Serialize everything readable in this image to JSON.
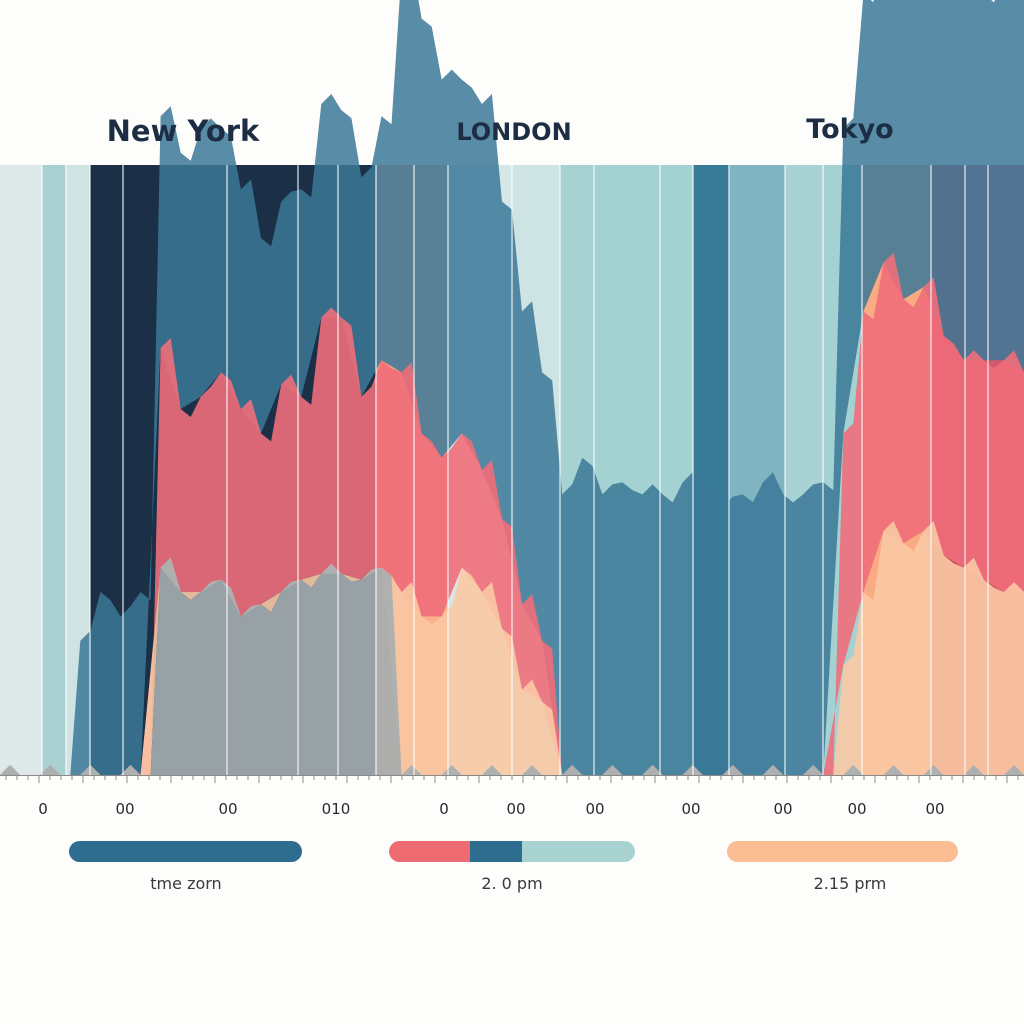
{
  "chart_data": {
    "type": "area",
    "title": "",
    "xlabel": "",
    "ylabel": "",
    "groups": [
      {
        "name": "New York",
        "x_start": 0,
        "x_end": 338
      },
      {
        "name": "LONDON",
        "x_start": 338,
        "x_end": 693
      },
      {
        "name": "Tokyo",
        "x_start": 693,
        "x_end": 1024
      }
    ],
    "tick_labels": [
      "0",
      "00",
      "00",
      "010",
      "0",
      "00",
      "00",
      "00",
      "00",
      "00",
      "00"
    ],
    "background_bands": [
      {
        "color": "#dde9e9"
      },
      {
        "color": "#a9d1d2"
      },
      {
        "color": "#cfe3e3"
      },
      {
        "color": "#1b3047"
      },
      {
        "color": "#1b3047"
      },
      {
        "color": "#1b3047"
      },
      {
        "color": "#1b3047"
      },
      {
        "color": "#1b3047"
      },
      {
        "color": "#f6a282"
      },
      {
        "color": "#fbaf8b"
      },
      {
        "color": "#d6e7e8"
      },
      {
        "color": "#cee3e3"
      },
      {
        "color": "#a6d2d2"
      },
      {
        "color": "#a4d1d1"
      },
      {
        "color": "#a4d1d1"
      },
      {
        "color": "#3a7a99"
      },
      {
        "color": "#7fb4c0"
      },
      {
        "color": "#a8d2d3"
      },
      {
        "color": "#a4d1d1"
      },
      {
        "color": "#fbab84"
      },
      {
        "color": "#cc4a5e"
      },
      {
        "color": "#d5576a"
      },
      {
        "color": "#d5576a"
      },
      {
        "color": "#cf4d62"
      },
      {
        "color": "#f9a985"
      }
    ],
    "series": [
      {
        "name": "",
        "color": "#3b7898",
        "values": [
          0,
          0,
          0,
          0,
          22,
          30,
          26,
          30,
          38,
          42,
          44,
          40,
          36,
          32,
          30,
          34,
          35,
          34,
          36,
          40,
          66,
          68,
          62,
          58,
          60,
          52,
          48,
          44,
          46,
          52,
          46,
          48,
          46,
          46,
          48,
          46,
          44,
          46,
          48,
          46,
          46,
          48,
          50,
          52,
          56,
          60,
          62,
          58,
          62,
          60,
          62,
          64
        ]
      },
      {
        "name": "",
        "color": "#f06e7a",
        "values": [
          0,
          0,
          0,
          0,
          0,
          0,
          0,
          0,
          36,
          30,
          32,
          34,
          34,
          28,
          34,
          30,
          42,
          42,
          30,
          34,
          36,
          30,
          26,
          22,
          20,
          18,
          14,
          10,
          0,
          0,
          0,
          0,
          0,
          0,
          0,
          0,
          0,
          0,
          0,
          0,
          0,
          0,
          38,
          46,
          44,
          40,
          40,
          36,
          34,
          36,
          38,
          36
        ]
      },
      {
        "name": "",
        "color": "#f9c9a4",
        "values": [
          0,
          0,
          0,
          0,
          0,
          0,
          0,
          0,
          0,
          0,
          0,
          0,
          0,
          0,
          0,
          0,
          0,
          0,
          0,
          0,
          30,
          26,
          26,
          34,
          30,
          24,
          14,
          12,
          0,
          0,
          0,
          0,
          0,
          0,
          0,
          0,
          0,
          0,
          0,
          0,
          0,
          0,
          18,
          30,
          40,
          38,
          40,
          36,
          34,
          32,
          30,
          30
        ]
      },
      {
        "name": "",
        "color": "#a5aeb0",
        "values": [
          0,
          0,
          0,
          0,
          0,
          0,
          0,
          0,
          34,
          30,
          30,
          32,
          26,
          28,
          30,
          32,
          33,
          33,
          32,
          34,
          0,
          0,
          0,
          0,
          0,
          0,
          0,
          0,
          0,
          0,
          0,
          0,
          0,
          0,
          0,
          0,
          0,
          0,
          0,
          0,
          0,
          0,
          0,
          0,
          0,
          0,
          0,
          0,
          0,
          0,
          0,
          0
        ]
      }
    ],
    "legend_bars": [
      {
        "segments": [
          {
            "color": "#2e6d8f",
            "share": 1.0
          }
        ],
        "caption": "tme zorn"
      },
      {
        "segments": [
          {
            "color": "#ee6b72",
            "share": 0.33
          },
          {
            "color": "#2e6d8f",
            "share": 0.21
          },
          {
            "color": "#a9d3d0",
            "share": 0.46
          }
        ],
        "caption": "2. 0 pm"
      },
      {
        "segments": [
          {
            "color": "#fbbd94",
            "share": 1.0
          }
        ],
        "caption": "2.15 prm"
      }
    ]
  }
}
